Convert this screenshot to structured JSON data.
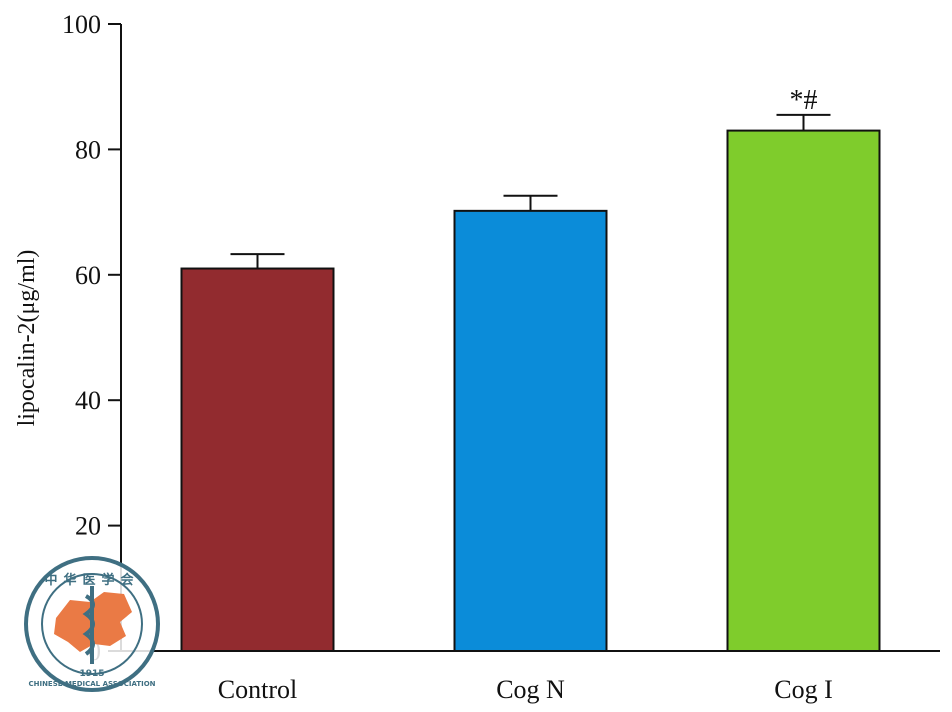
{
  "chart_data": {
    "type": "bar",
    "categories": [
      "Control",
      "Cog N",
      "Cog I"
    ],
    "values": [
      61,
      70.2,
      83
    ],
    "errors": [
      2.3,
      2.4,
      2.5
    ],
    "annotations": [
      "",
      "",
      "*#"
    ],
    "colors": [
      "#922b2f",
      "#0b8cd9",
      "#7fcc2c"
    ],
    "xlabel": "",
    "ylabel": "lipocalin-2(μg/ml)",
    "ylim": [
      0,
      100
    ],
    "yticks": [
      "0",
      "20",
      "40",
      "60",
      "80",
      "100"
    ],
    "grid": false
  },
  "watermark": {
    "name": "CHINESE MEDICAL ASSOCIATION",
    "chinese": "中华医学会",
    "year": "1915"
  }
}
